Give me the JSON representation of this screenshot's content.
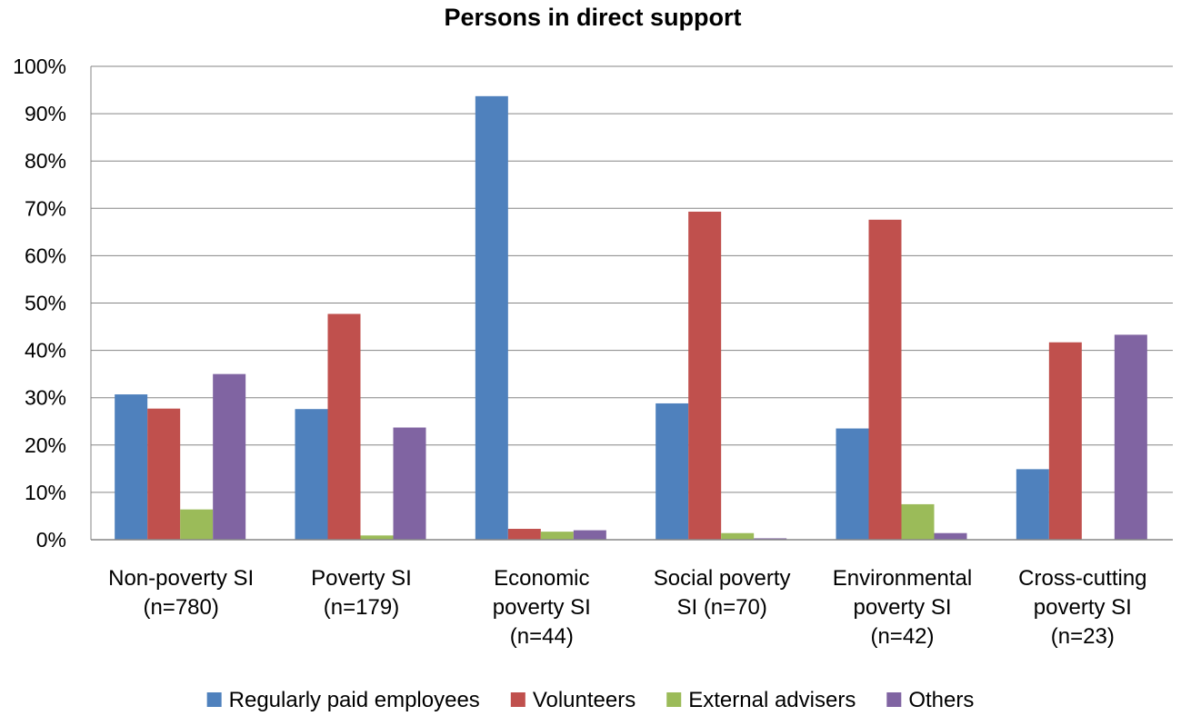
{
  "chart_data": {
    "type": "bar",
    "title": "Persons in direct support",
    "xlabel": "",
    "ylabel": "",
    "ylim": [
      0,
      100
    ],
    "y_tick_values": [
      0,
      10,
      20,
      30,
      40,
      50,
      60,
      70,
      80,
      90,
      100
    ],
    "y_tick_labels": [
      "0%",
      "10%",
      "20%",
      "30%",
      "40%",
      "50%",
      "60%",
      "70%",
      "80%",
      "90%",
      "100%"
    ],
    "grid": true,
    "legend_position": "bottom",
    "categories": [
      [
        "Non-poverty SI",
        "(n=780)"
      ],
      [
        "Poverty SI",
        "(n=179)"
      ],
      [
        "Economic",
        "poverty SI",
        "(n=44)"
      ],
      [
        "Social poverty",
        "SI (n=70)"
      ],
      [
        "Environmental",
        "poverty SI",
        "(n=42)"
      ],
      [
        "Cross-cutting",
        "poverty SI",
        "(n=23)"
      ]
    ],
    "series": [
      {
        "name": "Regularly paid employees",
        "color": "#4f81bd",
        "values": [
          30.7,
          27.6,
          93.7,
          28.8,
          23.5,
          14.9
        ]
      },
      {
        "name": "Volunteers",
        "color": "#c0504d",
        "values": [
          27.7,
          47.7,
          2.3,
          69.3,
          67.6,
          41.7
        ]
      },
      {
        "name": "External advisers",
        "color": "#9bbb59",
        "values": [
          6.4,
          0.9,
          1.7,
          1.4,
          7.5,
          0
        ]
      },
      {
        "name": "Others",
        "color": "#8064a2",
        "values": [
          35.0,
          23.7,
          2.0,
          0.3,
          1.4,
          43.3
        ]
      }
    ]
  }
}
